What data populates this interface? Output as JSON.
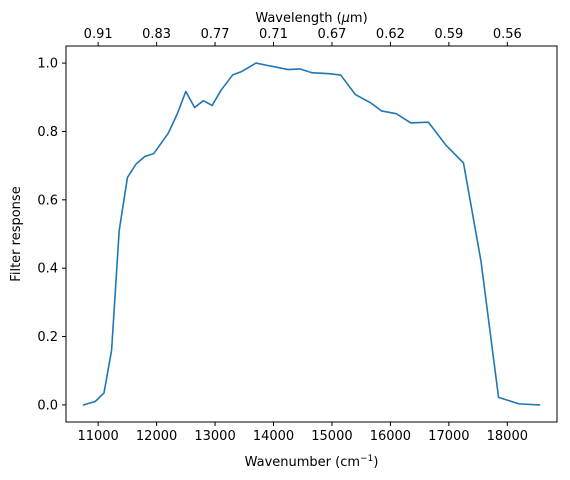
{
  "chart_data": {
    "type": "line",
    "xlabel": "Wavenumber (cm",
    "xlabel_sup": "−1",
    "xlabel_close": ")",
    "ylabel": "Filter response",
    "top_xlabel_pre": "Wavelength (",
    "top_xlabel_mu": "μ",
    "top_xlabel_post": "m)",
    "xlim": [
      10450,
      18850
    ],
    "ylim": [
      -0.05,
      1.05
    ],
    "xticks": [
      11000,
      12000,
      13000,
      14000,
      15000,
      16000,
      17000,
      18000
    ],
    "yticks": [
      0.0,
      0.2,
      0.4,
      0.6,
      0.8,
      1.0
    ],
    "ytick_labels": [
      "0.0",
      "0.2",
      "0.4",
      "0.6",
      "0.8",
      "1.0"
    ],
    "top_ticks": [
      {
        "label": "0.91",
        "x": 11000
      },
      {
        "label": "0.83",
        "x": 12000
      },
      {
        "label": "0.77",
        "x": 13000
      },
      {
        "label": "0.71",
        "x": 14000
      },
      {
        "label": "0.67",
        "x": 15000
      },
      {
        "label": "0.62",
        "x": 16000
      },
      {
        "label": "0.59",
        "x": 17000
      },
      {
        "label": "0.56",
        "x": 18000
      }
    ],
    "grid": false,
    "series": [
      {
        "color": "#1f77b4",
        "x": [
          10750,
          10950,
          11100,
          11230,
          11360,
          11500,
          11650,
          11800,
          11950,
          12200,
          12350,
          12500,
          12650,
          12800,
          12950,
          13100,
          13300,
          13450,
          13700,
          13900,
          14050,
          14250,
          14450,
          14650,
          14950,
          15150,
          15400,
          15650,
          15850,
          16100,
          16350,
          16650,
          16950,
          17250,
          17550,
          17850,
          18200,
          18550
        ],
        "y": [
          0.0,
          0.01,
          0.035,
          0.16,
          0.51,
          0.665,
          0.705,
          0.727,
          0.735,
          0.795,
          0.85,
          0.917,
          0.87,
          0.89,
          0.876,
          0.92,
          0.965,
          0.975,
          1.0,
          0.993,
          0.988,
          0.981,
          0.983,
          0.972,
          0.969,
          0.965,
          0.908,
          0.885,
          0.86,
          0.852,
          0.825,
          0.827,
          0.76,
          0.708,
          0.42,
          0.022,
          0.003,
          0.0
        ]
      }
    ]
  }
}
